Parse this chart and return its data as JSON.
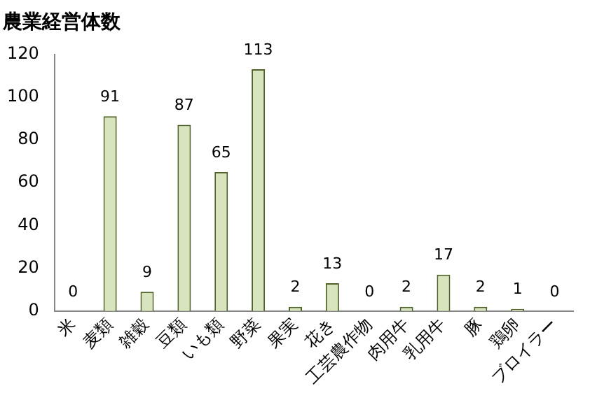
{
  "chart_data": {
    "type": "bar",
    "title": "農業経営体数",
    "categories": [
      "米",
      "麦類",
      "雑穀",
      "豆類",
      "いも類",
      "野菜",
      "果実",
      "花き",
      "工芸農作物",
      "肉用牛",
      "乳用牛",
      "豚",
      "鶏卵",
      "ブロイラー"
    ],
    "values": [
      0,
      91,
      9,
      87,
      65,
      113,
      2,
      13,
      0,
      2,
      17,
      2,
      1,
      0
    ],
    "color": "#d7e4bd",
    "ylim": [
      0,
      120
    ],
    "yticks": [
      0,
      20,
      40,
      60,
      80,
      100,
      120
    ],
    "grid": false,
    "legend": false,
    "data_labels": true
  }
}
